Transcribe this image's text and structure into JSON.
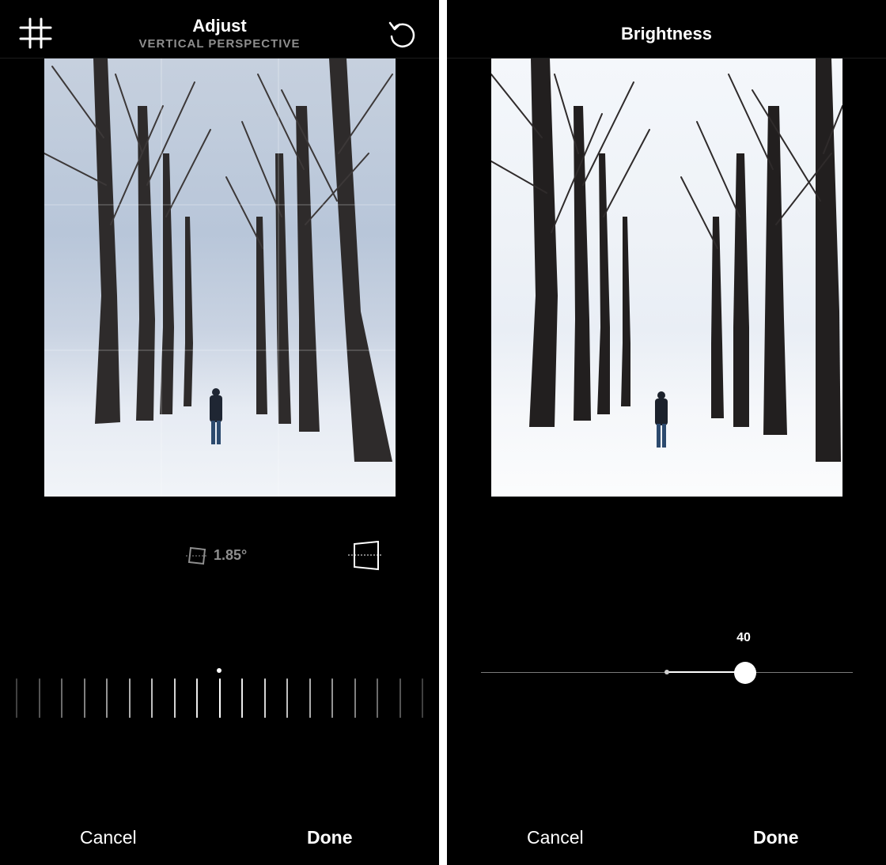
{
  "left_screen": {
    "header": {
      "title": "Adjust",
      "subtitle": "VERTICAL PERSPECTIVE",
      "grid_icon": "grid-icon",
      "reset_icon": "rotate-reset-icon"
    },
    "perspective": {
      "value": "1.85°",
      "vertical_icon": "vertical-perspective-icon",
      "horizontal_icon": "horizontal-perspective-icon"
    },
    "dial": {
      "tick_count": 19,
      "icon": "scale-dial"
    },
    "footer": {
      "cancel_label": "Cancel",
      "done_label": "Done"
    }
  },
  "right_screen": {
    "header": {
      "title": "Brightness"
    },
    "slider": {
      "value_label": "40",
      "value": 40,
      "min": -100,
      "max": 100
    },
    "footer": {
      "cancel_label": "Cancel",
      "done_label": "Done"
    }
  },
  "colors": {
    "background": "#000000",
    "text": "#ffffff",
    "subtitle": "#8e8e8e",
    "divider": "#ffffff"
  }
}
